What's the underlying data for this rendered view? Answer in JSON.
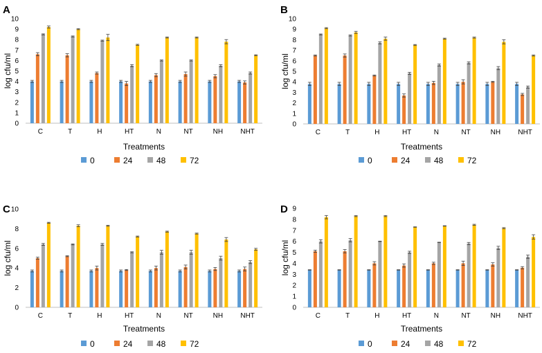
{
  "colors": {
    "0": "#5B9BD5",
    "24": "#ED7D31",
    "48": "#A5A5A5",
    "72": "#FFC000",
    "axis": "#BFBFBF",
    "error": "#404040"
  },
  "chart_data": [
    {
      "panel": "A",
      "type": "bar",
      "categories": [
        "C",
        "T",
        "H",
        "HT",
        "N",
        "NT",
        "NH",
        "NHT"
      ],
      "xlabel": "Treatments",
      "ylabel": "log cfu/ml",
      "ylim": [
        0,
        10
      ],
      "yticks": [
        0,
        1,
        2,
        3,
        4,
        5,
        6,
        7,
        8,
        9,
        10
      ],
      "series": [
        {
          "name": "0",
          "values": [
            4.0,
            4.0,
            4.0,
            4.0,
            4.0,
            4.0,
            4.0,
            4.0
          ],
          "errors": [
            0.1,
            0.1,
            0.1,
            0.1,
            0.1,
            0.1,
            0.1,
            0.1
          ]
        },
        {
          "name": "24",
          "values": [
            6.6,
            6.5,
            4.8,
            3.8,
            4.6,
            4.7,
            4.5,
            3.9
          ],
          "errors": [
            0.15,
            0.15,
            0.1,
            0.2,
            0.15,
            0.2,
            0.15,
            0.15
          ]
        },
        {
          "name": "48",
          "values": [
            8.5,
            8.3,
            7.9,
            5.5,
            6.0,
            6.0,
            5.5,
            4.8
          ],
          "errors": [
            0.05,
            0.05,
            0.05,
            0.1,
            0.05,
            0.05,
            0.1,
            0.1
          ]
        },
        {
          "name": "72",
          "values": [
            9.2,
            9.0,
            8.2,
            7.5,
            8.2,
            8.2,
            7.8,
            6.5
          ],
          "errors": [
            0.1,
            0.05,
            0.3,
            0.05,
            0.05,
            0.05,
            0.2,
            0.05
          ]
        }
      ]
    },
    {
      "panel": "B",
      "type": "bar",
      "categories": [
        "C",
        "T",
        "H",
        "HT",
        "N",
        "NT",
        "NH",
        "NHT"
      ],
      "xlabel": "Treatments",
      "ylabel": "log cfu/ml",
      "ylim": [
        0,
        10
      ],
      "yticks": [
        0,
        1,
        2,
        3,
        4,
        5,
        6,
        7,
        8,
        9,
        10
      ],
      "series": [
        {
          "name": "0",
          "values": [
            3.8,
            3.8,
            3.8,
            3.8,
            3.8,
            3.8,
            3.8,
            3.8
          ],
          "errors": [
            0.15,
            0.15,
            0.15,
            0.15,
            0.15,
            0.15,
            0.15,
            0.15
          ]
        },
        {
          "name": "24",
          "values": [
            6.5,
            6.5,
            4.6,
            2.7,
            3.9,
            4.0,
            4.0,
            2.8
          ],
          "errors": [
            0.05,
            0.15,
            0.05,
            0.15,
            0.15,
            0.2,
            0.05,
            0.1
          ]
        },
        {
          "name": "48",
          "values": [
            8.5,
            8.4,
            7.7,
            4.8,
            5.6,
            5.8,
            5.3,
            3.5
          ],
          "errors": [
            0.05,
            0.05,
            0.1,
            0.1,
            0.1,
            0.1,
            0.15,
            0.1
          ]
        },
        {
          "name": "72",
          "values": [
            9.1,
            8.7,
            8.1,
            7.5,
            8.1,
            8.2,
            7.8,
            6.5
          ],
          "errors": [
            0.05,
            0.1,
            0.15,
            0.05,
            0.05,
            0.05,
            0.2,
            0.05
          ]
        }
      ]
    },
    {
      "panel": "C",
      "type": "bar",
      "categories": [
        "C",
        "T",
        "H",
        "HT",
        "N",
        "NT",
        "NH",
        "NHT"
      ],
      "xlabel": "Treatments",
      "ylabel": "log cfu/ml",
      "ylim": [
        0,
        10
      ],
      "yticks": [
        0,
        2,
        4,
        6,
        8,
        10
      ],
      "series": [
        {
          "name": "0",
          "values": [
            3.7,
            3.7,
            3.7,
            3.7,
            3.7,
            3.7,
            3.7,
            3.7
          ],
          "errors": [
            0.1,
            0.1,
            0.1,
            0.1,
            0.1,
            0.1,
            0.1,
            0.1
          ]
        },
        {
          "name": "24",
          "values": [
            5.0,
            5.2,
            4.0,
            3.8,
            4.0,
            4.1,
            3.9,
            3.9
          ],
          "errors": [
            0.1,
            0.05,
            0.2,
            0.05,
            0.2,
            0.2,
            0.15,
            0.2
          ]
        },
        {
          "name": "48",
          "values": [
            6.4,
            6.4,
            6.4,
            5.6,
            5.6,
            5.6,
            5.0,
            4.6
          ],
          "errors": [
            0.1,
            0.05,
            0.1,
            0.05,
            0.2,
            0.2,
            0.2,
            0.15
          ]
        },
        {
          "name": "72",
          "values": [
            8.6,
            8.3,
            8.3,
            7.2,
            7.7,
            7.5,
            6.9,
            5.9
          ],
          "errors": [
            0.05,
            0.1,
            0.05,
            0.05,
            0.05,
            0.05,
            0.2,
            0.1
          ]
        }
      ]
    },
    {
      "panel": "D",
      "type": "bar",
      "categories": [
        "C",
        "T",
        "H",
        "HT",
        "N",
        "NT",
        "NH",
        "NHT"
      ],
      "xlabel": "Treatments",
      "ylabel": "log cfu/ml",
      "ylim": [
        0,
        9
      ],
      "yticks": [
        0,
        1,
        2,
        3,
        4,
        5,
        6,
        7,
        8,
        9
      ],
      "series": [
        {
          "name": "0",
          "values": [
            3.4,
            3.4,
            3.4,
            3.4,
            3.4,
            3.4,
            3.4,
            3.4
          ],
          "errors": [
            0.02,
            0.02,
            0.02,
            0.02,
            0.02,
            0.02,
            0.02,
            0.02
          ]
        },
        {
          "name": "24",
          "values": [
            5.1,
            5.1,
            4.0,
            3.8,
            4.0,
            4.0,
            3.9,
            3.6
          ],
          "errors": [
            0.1,
            0.15,
            0.15,
            0.15,
            0.1,
            0.2,
            0.15,
            0.1
          ]
        },
        {
          "name": "48",
          "values": [
            6.0,
            6.1,
            6.0,
            5.0,
            5.9,
            5.8,
            5.4,
            4.6
          ],
          "errors": [
            0.15,
            0.15,
            0.02,
            0.1,
            0.02,
            0.1,
            0.15,
            0.15
          ]
        },
        {
          "name": "72",
          "values": [
            8.2,
            8.3,
            8.3,
            7.3,
            7.4,
            7.5,
            7.2,
            6.4
          ],
          "errors": [
            0.15,
            0.05,
            0.05,
            0.02,
            0.02,
            0.05,
            0.05,
            0.2
          ]
        }
      ]
    }
  ]
}
